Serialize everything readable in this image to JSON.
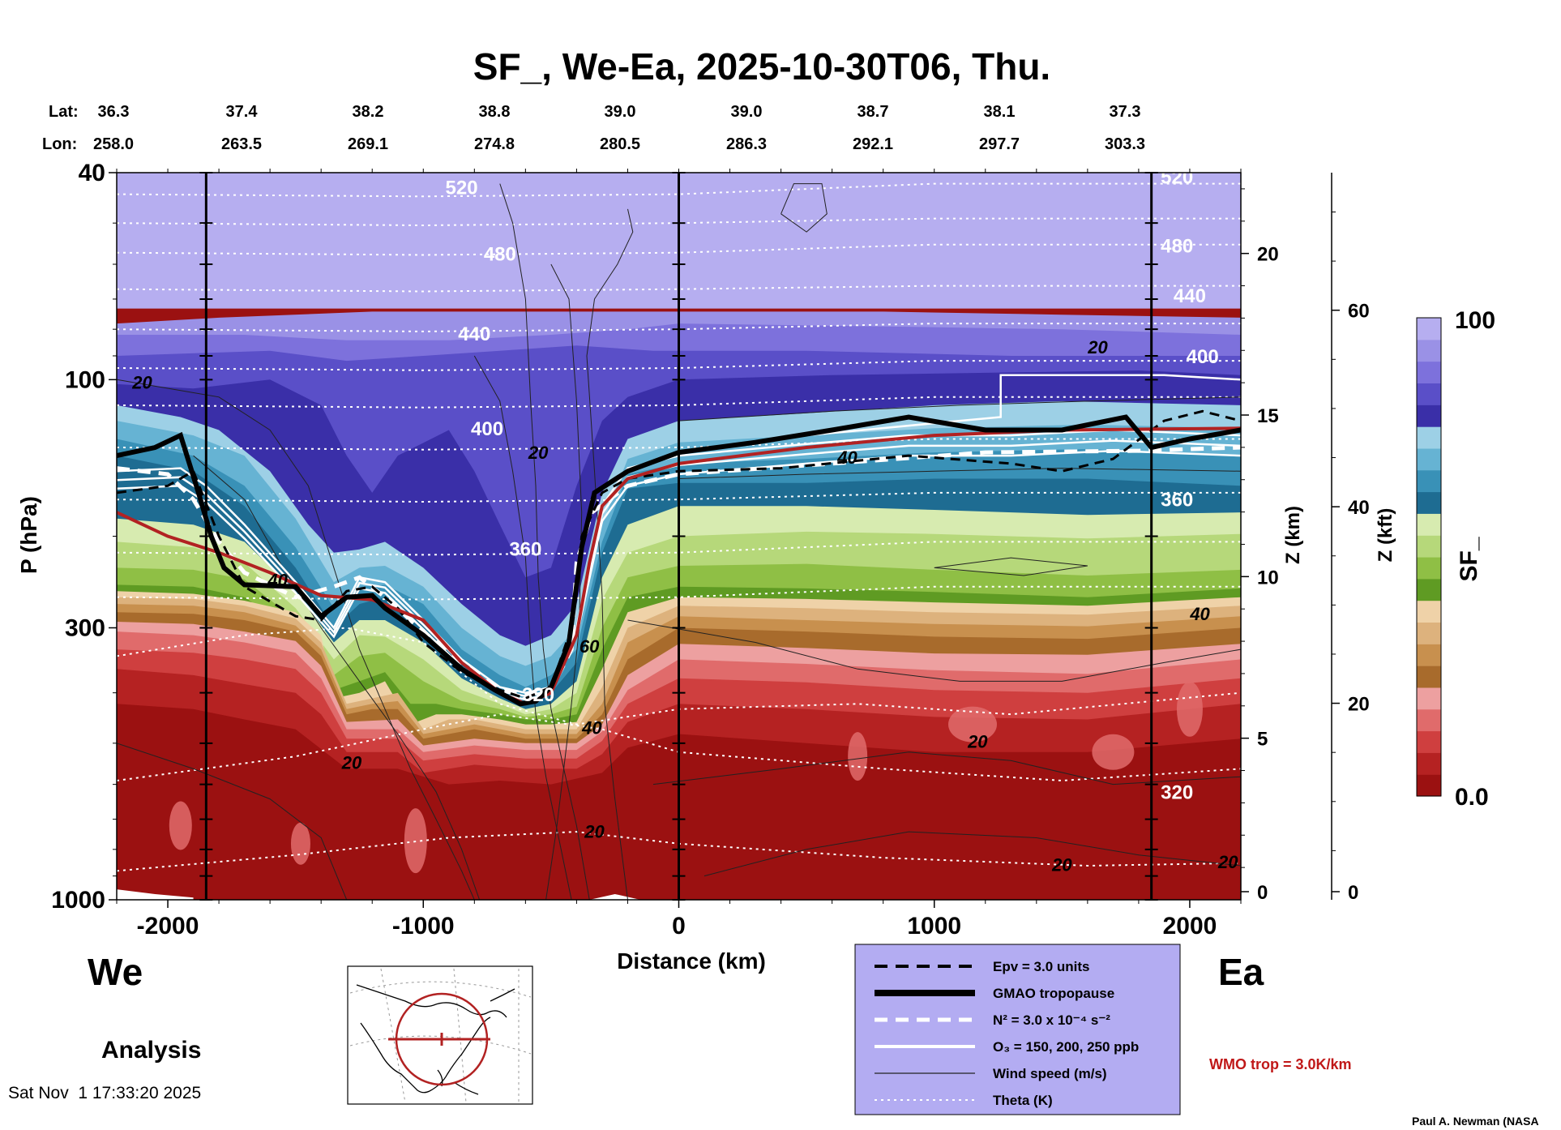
{
  "chart_data": {
    "type": "heatmap",
    "title": "SF_, We-Ea, 2025-10-30T06, Thu.",
    "xlabel": "Distance (km)",
    "ylabel": "P (hPa)",
    "y2label": "Z (km)",
    "y3label": "Z (kft)",
    "colorbar_label": "SF_",
    "colorbar_range": [
      0.0,
      100
    ],
    "colorbar_tick_labels": [
      "0.0",
      "100"
    ],
    "xlim": [
      -2200,
      2200
    ],
    "ylim": [
      1000,
      40
    ],
    "x_ticks": [
      -2000,
      -1000,
      0,
      1000,
      2000
    ],
    "x_tick_labels": [
      "-2000",
      "-1000",
      "0",
      "1000",
      "2000"
    ],
    "y_ticks": [
      40,
      100,
      300,
      1000
    ],
    "y_tick_labels": [
      "40",
      "100",
      "300",
      "1000"
    ],
    "z_km_ticks": [
      0,
      5,
      10,
      15,
      20
    ],
    "z_km_tick_labels": [
      "0",
      "5",
      "10",
      "15",
      "20"
    ],
    "z_kft_ticks": [
      0,
      20,
      40,
      60
    ],
    "z_kft_tick_labels": [
      "0",
      "20",
      "40",
      "60"
    ],
    "lat_label": "Lat:",
    "lon_label": "Lon:",
    "lat_values": [
      "36.3",
      "37.4",
      "38.2",
      "38.8",
      "39.0",
      "39.0",
      "38.7",
      "38.1",
      "37.3"
    ],
    "lon_values": [
      "258.0",
      "263.5",
      "269.1",
      "274.8",
      "280.5",
      "286.3",
      "292.1",
      "297.7",
      "303.3"
    ],
    "coord_distances": [
      -2200,
      -1700,
      -1200,
      -700,
      -200,
      300,
      800,
      1300,
      1800
    ],
    "vertical_lines_km": [
      -1850,
      0,
      1850
    ],
    "colorbar_colors": [
      "#9b1111",
      "#b52222",
      "#cf3f3f",
      "#e06b6b",
      "#eda0a0",
      "#a86b2c",
      "#c8904e",
      "#ddb27d",
      "#efd2a8",
      "#5f9b23",
      "#8fbf45",
      "#b6d87a",
      "#d7ebb0",
      "#1e6c92",
      "#3991b7",
      "#66b3d3",
      "#9dd0e6",
      "#3a2fa8",
      "#5a4fc8",
      "#7d71dc",
      "#9a91e6",
      "#b6aef0"
    ],
    "theta_labels": [
      {
        "text": "520",
        "x": -850,
        "p": 44
      },
      {
        "text": "480",
        "x": -700,
        "p": 59
      },
      {
        "text": "440",
        "x": -800,
        "p": 84
      },
      {
        "text": "400",
        "x": -750,
        "p": 128
      },
      {
        "text": "360",
        "x": -600,
        "p": 218
      },
      {
        "text": "320",
        "x": -550,
        "p": 415
      },
      {
        "text": "520",
        "x": 1950,
        "p": 42
      },
      {
        "text": "480",
        "x": 1950,
        "p": 57
      },
      {
        "text": "440",
        "x": 2000,
        "p": 71
      },
      {
        "text": "400",
        "x": 2050,
        "p": 93
      },
      {
        "text": "360",
        "x": 1950,
        "p": 175
      },
      {
        "text": "320",
        "x": 1950,
        "p": 640
      }
    ],
    "wind_labels": [
      {
        "text": "20",
        "x": -2100,
        "p": 104
      },
      {
        "text": "40",
        "x": -1570,
        "p": 250
      },
      {
        "text": "20",
        "x": -1280,
        "p": 560
      },
      {
        "text": "20",
        "x": -550,
        "p": 142
      },
      {
        "text": "60",
        "x": -350,
        "p": 335
      },
      {
        "text": "40",
        "x": -340,
        "p": 480
      },
      {
        "text": "20",
        "x": -330,
        "p": 760
      },
      {
        "text": "40",
        "x": 660,
        "p": 145
      },
      {
        "text": "20",
        "x": 1170,
        "p": 510
      },
      {
        "text": "20",
        "x": 1640,
        "p": 89
      },
      {
        "text": "40",
        "x": 2040,
        "p": 290
      },
      {
        "text": "20",
        "x": 1500,
        "p": 880
      },
      {
        "text": "20",
        "x": 2150,
        "p": 870
      }
    ],
    "legend": [
      {
        "label": "Epv = 3.0 units",
        "style": "dashed-black"
      },
      {
        "label": "GMAO tropopause",
        "style": "thick-black"
      },
      {
        "label": "N² = 3.0 x 10⁻⁴ s⁻²",
        "style": "dashed-white"
      },
      {
        "label": "O₃ = 150, 200, 250 ppb",
        "style": "solid-white"
      },
      {
        "label": "Wind speed (m/s)",
        "style": "thin-black"
      },
      {
        "label": "Theta (K)",
        "style": "dotted-white"
      }
    ],
    "legend_bg": "#b3acf2",
    "wmo_label": "WMO trop = 3.0K/km",
    "wmo_color": "#c01818",
    "west_label": "We",
    "east_label": "Ea",
    "analysis_label": "Analysis",
    "timestamp": "Sat Nov  1 17:33:20 2025",
    "credit": "Paul A. Newman (NASA"
  }
}
